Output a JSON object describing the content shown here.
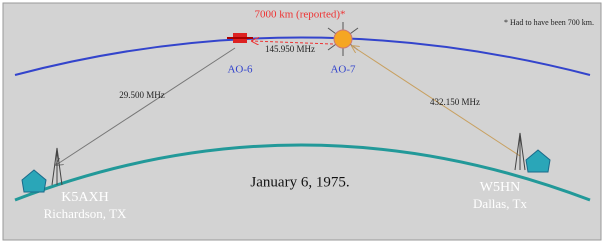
{
  "header": {
    "distance": "7000 km (reported)*",
    "footnote": "* Had to have been 700 km."
  },
  "satellites": [
    {
      "label": "AO-6"
    },
    {
      "label": "AO-7"
    }
  ],
  "links": [
    {
      "label": "145.950 MHz"
    },
    {
      "label": "29.500 MHz"
    },
    {
      "label": "432.150 MHz"
    }
  ],
  "stations": [
    {
      "call": "K5AXH",
      "location": "Richardson, TX"
    },
    {
      "call": "W5HN",
      "location": "Dallas, Tx"
    }
  ],
  "date": "January 6, 1975."
}
